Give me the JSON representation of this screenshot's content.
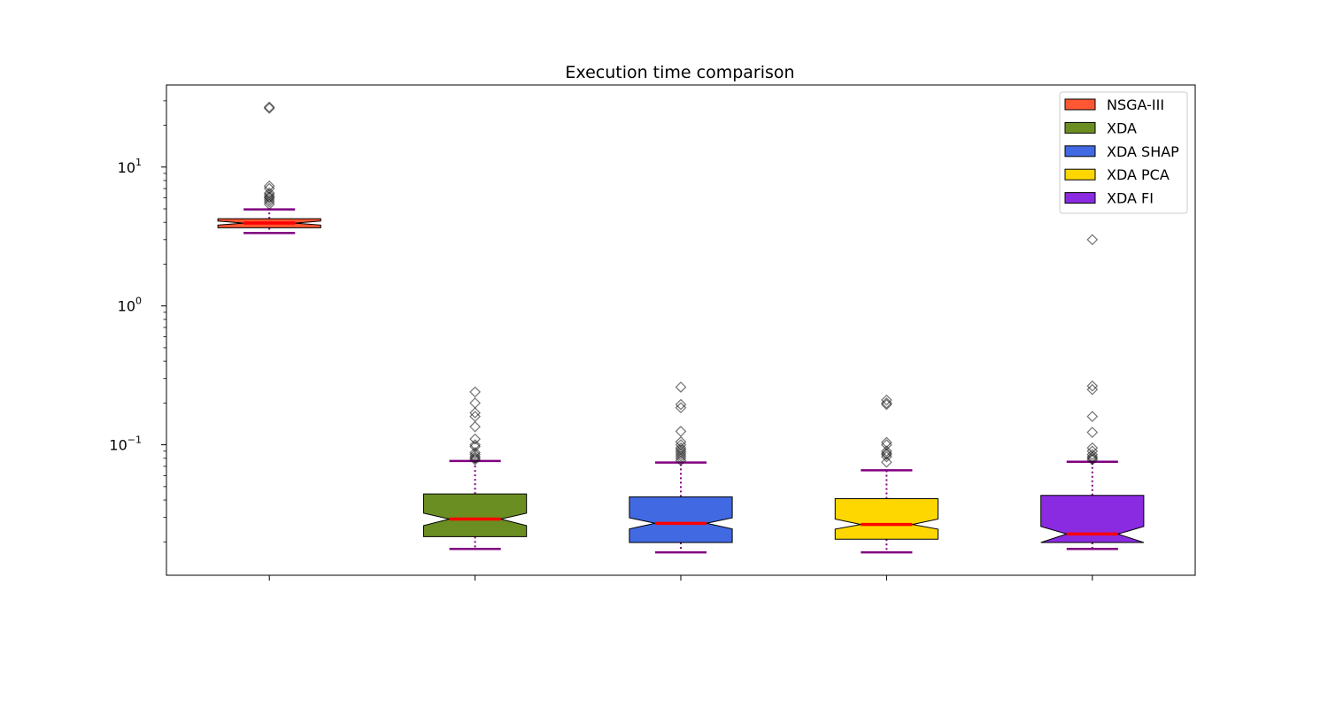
{
  "chart_data": {
    "type": "box",
    "title": "Execution time comparison",
    "xlabel": "",
    "ylabel": "",
    "yscale": "log",
    "ylim": [
      0.0115,
      39
    ],
    "yticks": [
      {
        "value": 10,
        "base": "10",
        "exp": "1"
      },
      {
        "value": 1,
        "base": "10",
        "exp": "0"
      },
      {
        "value": 0.1,
        "base": "10",
        "exp": "−1"
      }
    ],
    "grid": false,
    "legend_position": "top-right",
    "notched": true,
    "series": [
      {
        "name": "NSGA-III",
        "color": "#ff5733",
        "whisker_low": 3.35,
        "q1": 3.65,
        "notch_low": 3.82,
        "median": 3.95,
        "notch_high": 4.08,
        "q3": 4.25,
        "whisker_high": 4.95,
        "outliers": [
          5.4,
          5.6,
          5.8,
          6.0,
          6.1,
          6.3,
          6.5,
          7.0,
          7.3,
          26.5,
          27.0
        ]
      },
      {
        "name": "XDA",
        "color": "#6b8e23",
        "whisker_low": 0.0178,
        "q1": 0.0218,
        "notch_low": 0.0262,
        "median": 0.0292,
        "notch_high": 0.0322,
        "q3": 0.0443,
        "whisker_high": 0.0765,
        "outliers": [
          0.078,
          0.08,
          0.082,
          0.085,
          0.088,
          0.097,
          0.1,
          0.11,
          0.135,
          0.16,
          0.17,
          0.2,
          0.24
        ]
      },
      {
        "name": "XDA SHAP",
        "color": "#4169e1",
        "whisker_low": 0.0168,
        "q1": 0.0198,
        "notch_low": 0.0248,
        "median": 0.0272,
        "notch_high": 0.0298,
        "q3": 0.0422,
        "whisker_high": 0.0745,
        "outliers": [
          0.077,
          0.08,
          0.083,
          0.086,
          0.089,
          0.092,
          0.095,
          0.1,
          0.105,
          0.125,
          0.185,
          0.195,
          0.26
        ]
      },
      {
        "name": "XDA PCA",
        "color": "#ffd700",
        "whisker_low": 0.0168,
        "q1": 0.0209,
        "notch_low": 0.0247,
        "median": 0.0267,
        "notch_high": 0.0292,
        "q3": 0.0409,
        "whisker_high": 0.0655,
        "outliers": [
          0.075,
          0.082,
          0.085,
          0.087,
          0.09,
          0.1,
          0.104,
          0.195,
          0.2,
          0.21
        ]
      },
      {
        "name": "XDA FI",
        "color": "#8a2be2",
        "whisker_low": 0.0178,
        "q1": 0.0198,
        "notch_low": 0.0198,
        "median": 0.0228,
        "notch_high": 0.0258,
        "q3": 0.0432,
        "whisker_high": 0.0755,
        "outliers": [
          0.078,
          0.08,
          0.082,
          0.085,
          0.09,
          0.095,
          0.123,
          0.16,
          0.25,
          0.265,
          3.0
        ]
      }
    ],
    "whisker_color": "#800080",
    "median_color": "#ff0000"
  }
}
